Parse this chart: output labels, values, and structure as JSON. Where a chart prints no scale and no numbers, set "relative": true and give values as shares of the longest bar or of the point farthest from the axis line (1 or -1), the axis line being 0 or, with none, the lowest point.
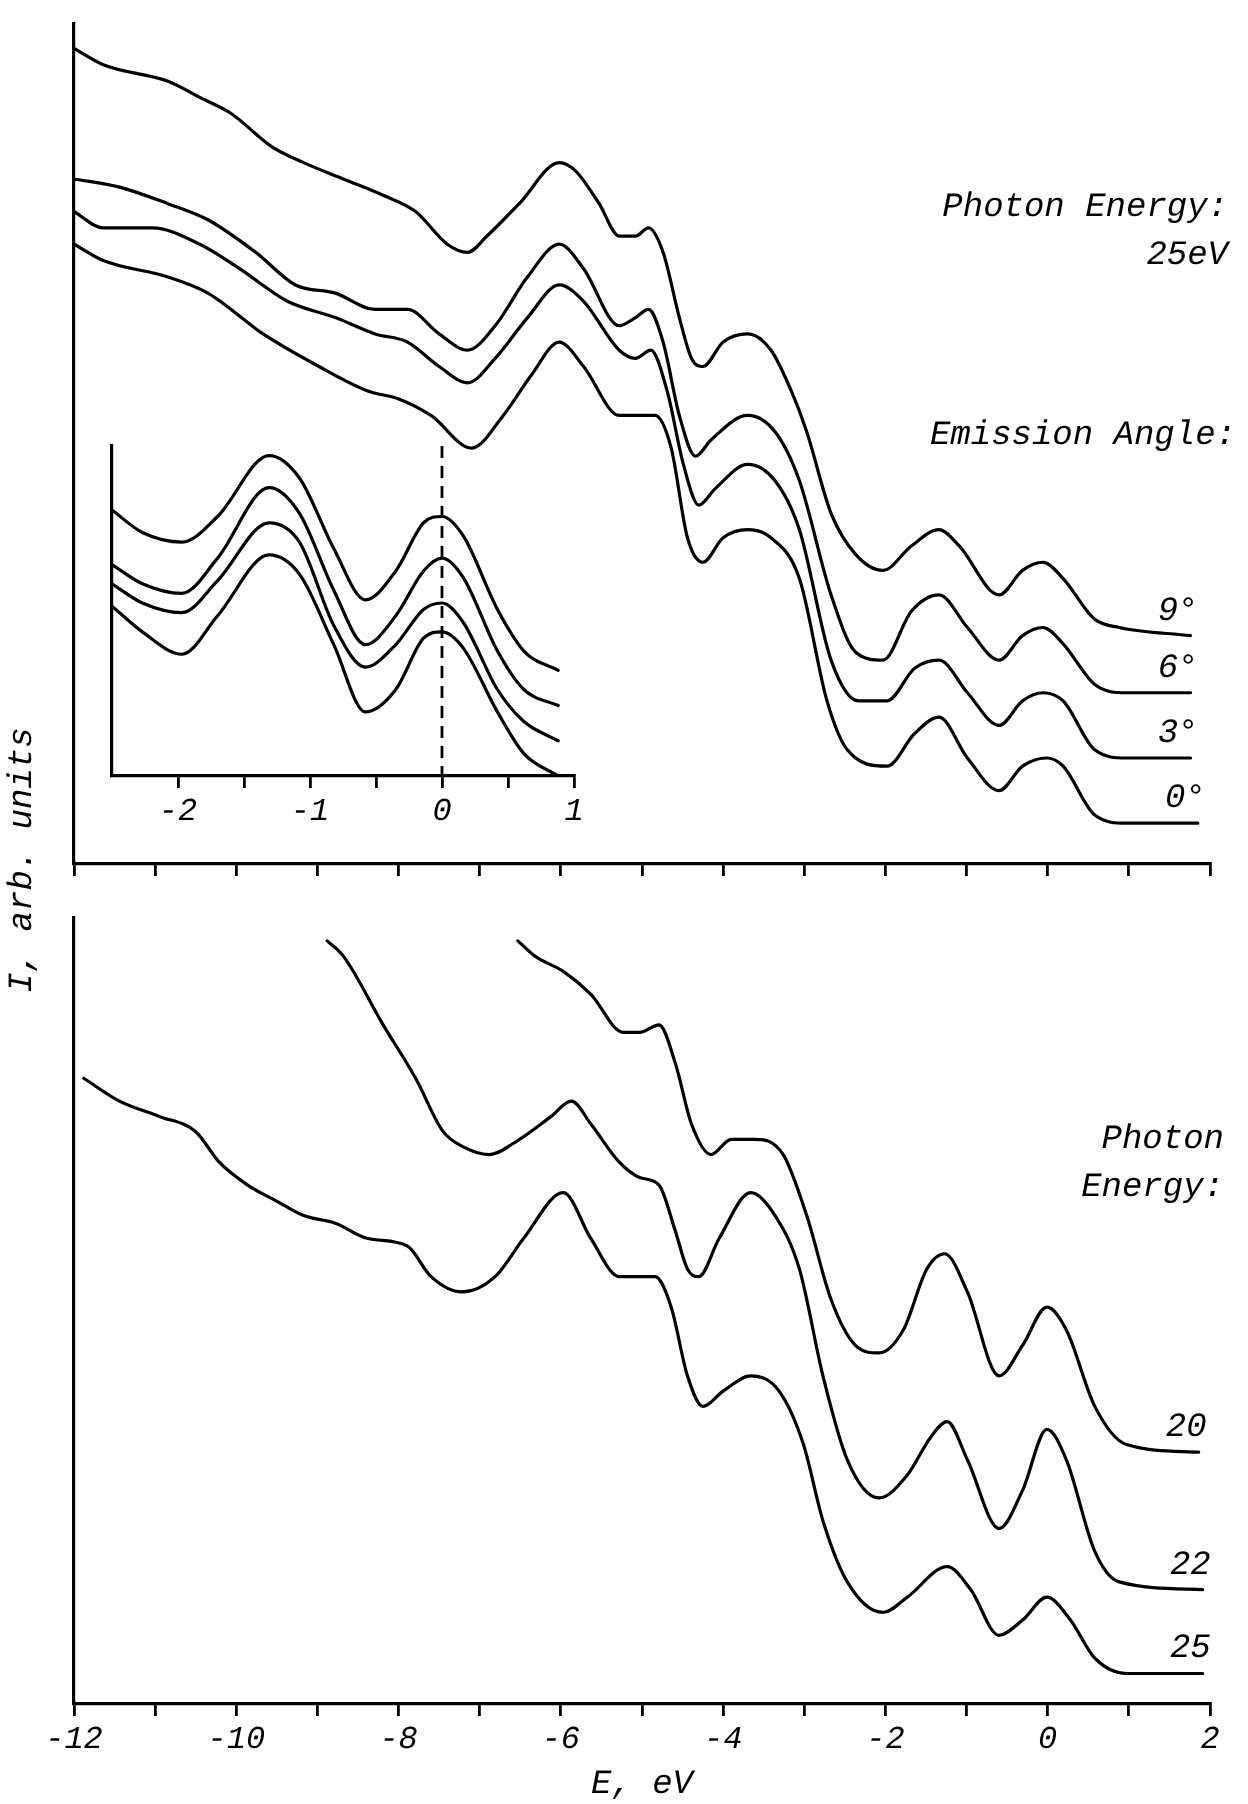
{
  "chart_data": [
    {
      "type": "line",
      "relative": true,
      "marker": "none",
      "tick_labels": false,
      "xlim": [
        -12,
        2
      ],
      "xticks": [
        -12,
        {
          "value": -11,
          "label": null
        },
        -10,
        {
          "value": -9,
          "label": null
        },
        -8,
        {
          "value": -7,
          "label": null
        },
        -6,
        {
          "value": -5,
          "label": null
        },
        -4,
        {
          "value": -3,
          "label": null
        },
        -2,
        {
          "value": -1,
          "label": null
        },
        0,
        {
          "value": 1,
          "label": null
        },
        2
      ],
      "ylabel": "I, arb. units",
      "annotations": [
        "Photon Energy:\n25eV",
        "Emission Angle:"
      ],
      "series": [
        {
          "name": "9°",
          "color": "#000000",
          "x": [
            -12,
            -11.64,
            -10.85,
            -10.45,
            -10.06,
            -9.57,
            -9.17,
            -8.68,
            -8.19,
            -7.79,
            -7.4,
            -7.15,
            -6.91,
            -6.51,
            -6.02,
            -5.82,
            -5.53,
            -5.28,
            -5.08,
            -4.92,
            -4.74,
            -4.54,
            -4.39,
            -4.25,
            -4,
            -3.7,
            -3.41,
            -3.16,
            -2.97,
            -2.67,
            -2.37,
            -2.03,
            -1.68,
            -1.34,
            -1.09,
            -0.6,
            -0.31,
            -0.06,
            0.19,
            0.58,
            0.88,
            1.76
          ],
          "values": [
            1,
            0.98,
            0.96,
            0.94,
            0.92,
            0.88,
            0.86,
            0.84,
            0.82,
            0.8,
            0.76,
            0.75,
            0.77,
            0.81,
            0.86,
            0.85,
            0.81,
            0.77,
            0.77,
            0.78,
            0.75,
            0.67,
            0.62,
            0.61,
            0.64,
            0.65,
            0.63,
            0.58,
            0.53,
            0.43,
            0.38,
            0.36,
            0.39,
            0.41,
            0.39,
            0.33,
            0.36,
            0.37,
            0.35,
            0.3,
            0.29,
            0.28
          ]
        },
        {
          "name": "6°",
          "color": "#000000",
          "x": [
            -12,
            -11.44,
            -10.85,
            -10.35,
            -9.76,
            -9.27,
            -8.78,
            -8.29,
            -7.89,
            -7.5,
            -7.15,
            -6.81,
            -6.41,
            -6.02,
            -5.72,
            -5.28,
            -5.08,
            -4.92,
            -4.74,
            -4.54,
            -4.34,
            -4.15,
            -3.7,
            -3.36,
            -3.06,
            -2.67,
            -2.37,
            -2.03,
            -1.68,
            -1.34,
            -0.99,
            -0.6,
            -0.31,
            -0.06,
            0.19,
            0.58,
            0.97,
            1.76
          ],
          "values": [
            0.84,
            0.83,
            0.81,
            0.79,
            0.75,
            0.71,
            0.7,
            0.68,
            0.68,
            0.65,
            0.63,
            0.66,
            0.72,
            0.76,
            0.73,
            0.66,
            0.67,
            0.68,
            0.64,
            0.55,
            0.5,
            0.52,
            0.55,
            0.53,
            0.47,
            0.33,
            0.26,
            0.25,
            0.31,
            0.33,
            0.29,
            0.25,
            0.28,
            0.29,
            0.27,
            0.22,
            0.21,
            0.21
          ]
        },
        {
          "name": "3°",
          "color": "#000000",
          "x": [
            -12,
            -11.64,
            -11.04,
            -10.45,
            -9.96,
            -9.37,
            -8.78,
            -8.29,
            -7.89,
            -7.5,
            -7.15,
            -6.81,
            -6.41,
            -6.02,
            -5.72,
            -5.28,
            -5.08,
            -4.89,
            -4.69,
            -4.49,
            -4.3,
            -4.1,
            -3.7,
            -3.36,
            -3.06,
            -2.67,
            -2.33,
            -1.98,
            -1.64,
            -1.34,
            -0.99,
            -0.6,
            -0.31,
            -0.06,
            0.19,
            0.58,
            0.97,
            1.76
          ],
          "values": [
            0.8,
            0.78,
            0.78,
            0.76,
            0.73,
            0.69,
            0.67,
            0.65,
            0.64,
            0.61,
            0.59,
            0.62,
            0.67,
            0.71,
            0.69,
            0.63,
            0.62,
            0.63,
            0.58,
            0.49,
            0.44,
            0.46,
            0.49,
            0.47,
            0.41,
            0.25,
            0.2,
            0.2,
            0.24,
            0.25,
            0.21,
            0.17,
            0.2,
            0.21,
            0.2,
            0.14,
            0.13,
            0.13
          ]
        },
        {
          "name": "0°",
          "color": "#000000",
          "x": [
            -12,
            -11.64,
            -10.85,
            -10.35,
            -9.67,
            -8.98,
            -8.38,
            -7.99,
            -7.6,
            -7.1,
            -6.71,
            -6.36,
            -6.02,
            -5.72,
            -5.28,
            -5.03,
            -4.84,
            -4.64,
            -4.44,
            -4.25,
            -4,
            -3.7,
            -3.41,
            -3.06,
            -2.72,
            -2.47,
            -1.98,
            -1.64,
            -1.34,
            -0.99,
            -0.6,
            -0.31,
            -0.01,
            0.19,
            0.58,
            0.97,
            1.85
          ],
          "values": [
            0.76,
            0.74,
            0.72,
            0.7,
            0.65,
            0.61,
            0.58,
            0.57,
            0.55,
            0.51,
            0.55,
            0.6,
            0.64,
            0.61,
            0.55,
            0.55,
            0.55,
            0.51,
            0.4,
            0.37,
            0.4,
            0.41,
            0.4,
            0.35,
            0.2,
            0.14,
            0.12,
            0.16,
            0.18,
            0.13,
            0.09,
            0.12,
            0.13,
            0.12,
            0.06,
            0.05,
            0.05
          ]
        }
      ]
    },
    {
      "type": "line",
      "relative": true,
      "marker": "none",
      "xlim": [
        -2.5,
        1
      ],
      "xticks": [
        -2,
        {
          "value": -1.5,
          "label": null
        },
        -1,
        {
          "value": -0.5,
          "label": null
        },
        0,
        {
          "value": 0.5,
          "label": null
        },
        1
      ],
      "ref_lines": [
        {
          "axis": "x",
          "value": 0,
          "line_style": "dashed"
        }
      ],
      "series": [
        {
          "color": "#000000",
          "x": [
            -2.5,
            -2.27,
            -1.97,
            -1.7,
            -1.31,
            -1.08,
            -0.82,
            -0.58,
            -0.35,
            -0.14,
            0,
            0.16,
            0.42,
            0.62,
            0.88
          ],
          "values": [
            0.83,
            0.76,
            0.73,
            0.81,
            1,
            0.93,
            0.71,
            0.55,
            0.64,
            0.79,
            0.81,
            0.75,
            0.52,
            0.39,
            0.33
          ]
        },
        {
          "color": "#000000",
          "x": [
            -2.5,
            -2.27,
            -1.97,
            -1.7,
            -1.31,
            -1.08,
            -0.82,
            -0.58,
            -0.35,
            -0.14,
            0,
            0.16,
            0.42,
            0.62,
            0.88
          ],
          "values": [
            0.66,
            0.6,
            0.57,
            0.68,
            0.9,
            0.82,
            0.58,
            0.41,
            0.5,
            0.64,
            0.68,
            0.62,
            0.39,
            0.27,
            0.22
          ]
        },
        {
          "color": "#000000",
          "x": [
            -2.5,
            -2.27,
            -1.97,
            -1.7,
            -1.31,
            -1.08,
            -0.82,
            -0.58,
            -0.35,
            -0.14,
            0,
            0.16,
            0.42,
            0.62,
            0.88
          ],
          "values": [
            0.6,
            0.54,
            0.51,
            0.61,
            0.79,
            0.73,
            0.47,
            0.34,
            0.41,
            0.52,
            0.54,
            0.48,
            0.27,
            0.17,
            0.11
          ]
        },
        {
          "color": "#000000",
          "x": [
            -2.5,
            -2.27,
            -1.97,
            -1.7,
            -1.31,
            -1.08,
            -0.82,
            -0.58,
            -0.35,
            -0.14,
            0,
            0.16,
            0.42,
            0.62,
            0.88
          ],
          "values": [
            0.53,
            0.45,
            0.38,
            0.5,
            0.69,
            0.63,
            0.41,
            0.2,
            0.27,
            0.43,
            0.45,
            0.4,
            0.2,
            0.07,
            0
          ]
        }
      ]
    },
    {
      "type": "line",
      "relative": true,
      "marker": "none",
      "xlim": [
        -12,
        2
      ],
      "xticks": [
        -12,
        {
          "value": -11,
          "label": null
        },
        -10,
        {
          "value": -9,
          "label": null
        },
        -8,
        {
          "value": -7,
          "label": null
        },
        -6,
        {
          "value": -5,
          "label": null
        },
        -4,
        {
          "value": -3,
          "label": null
        },
        -2,
        {
          "value": -1,
          "label": null
        },
        0,
        {
          "value": 1,
          "label": null
        },
        2
      ],
      "xlabel": "E, eV",
      "annotations": [
        "Photon\nEnergy:"
      ],
      "series": [
        {
          "name": "20",
          "color": "#000000",
          "x": [
            -6.53,
            -6.32,
            -5.97,
            -5.63,
            -5.23,
            -5.03,
            -4.79,
            -4.59,
            -4.39,
            -4.15,
            -3.9,
            -3.61,
            -3.26,
            -2.97,
            -2.67,
            -2.37,
            -2.08,
            -1.78,
            -1.49,
            -1.27,
            -0.99,
            -0.6,
            -0.31,
            -0.01,
            0.23,
            0.58,
            0.97,
            1.86
          ],
          "values": [
            1,
            0.98,
            0.96,
            0.93,
            0.88,
            0.88,
            0.89,
            0.84,
            0.76,
            0.72,
            0.74,
            0.74,
            0.72,
            0.64,
            0.53,
            0.47,
            0.46,
            0.49,
            0.57,
            0.59,
            0.54,
            0.43,
            0.47,
            0.52,
            0.49,
            0.39,
            0.34,
            0.33
          ]
        },
        {
          "name": "22",
          "color": "#000000",
          "x": [
            -8.88,
            -8.68,
            -8.19,
            -7.79,
            -7.45,
            -7.2,
            -6.89,
            -6.51,
            -6.12,
            -5.87,
            -5.63,
            -5.28,
            -5.03,
            -4.79,
            -4.59,
            -4.44,
            -4.3,
            -4.05,
            -3.66,
            -3.36,
            -3.06,
            -2.77,
            -2.47,
            -2.08,
            -1.73,
            -1.44,
            -1.24,
            -0.99,
            -0.6,
            -0.31,
            -0.01,
            0.23,
            0.58,
            0.88,
            1.91
          ],
          "values": [
            1,
            0.98,
            0.89,
            0.82,
            0.75,
            0.73,
            0.72,
            0.74,
            0.77,
            0.79,
            0.76,
            0.71,
            0.69,
            0.68,
            0.62,
            0.57,
            0.56,
            0.61,
            0.67,
            0.64,
            0.57,
            0.43,
            0.32,
            0.27,
            0.3,
            0.35,
            0.37,
            0.32,
            0.23,
            0.28,
            0.36,
            0.32,
            0.2,
            0.16,
            0.15
          ]
        },
        {
          "name": "25",
          "color": "#000000",
          "x": [
            -11.88,
            -11.44,
            -10.95,
            -10.5,
            -10.21,
            -9.86,
            -9.52,
            -9.17,
            -8.78,
            -8.38,
            -7.89,
            -7.6,
            -7.22,
            -6.81,
            -6.46,
            -5.97,
            -5.63,
            -5.28,
            -4.84,
            -4.64,
            -4.44,
            -4.25,
            -4,
            -3.66,
            -3.31,
            -3.01,
            -2.77,
            -2.47,
            -2.03,
            -1.73,
            -1.24,
            -0.95,
            -0.6,
            -0.31,
            -0.01,
            0.28,
            0.58,
            0.97,
            1.91
          ],
          "values": [
            0.82,
            0.79,
            0.77,
            0.75,
            0.71,
            0.68,
            0.66,
            0.64,
            0.63,
            0.61,
            0.6,
            0.56,
            0.54,
            0.56,
            0.61,
            0.67,
            0.61,
            0.56,
            0.56,
            0.52,
            0.43,
            0.39,
            0.41,
            0.43,
            0.41,
            0.34,
            0.24,
            0.16,
            0.12,
            0.14,
            0.18,
            0.15,
            0.09,
            0.11,
            0.14,
            0.11,
            0.06,
            0.04,
            0.04
          ]
        }
      ]
    }
  ]
}
